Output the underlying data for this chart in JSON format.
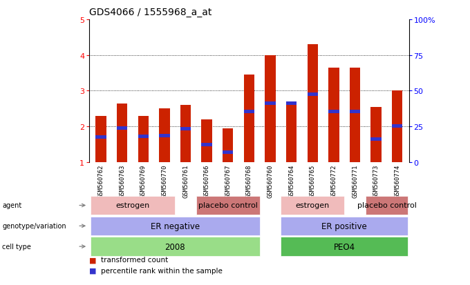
{
  "title": "GDS4066 / 1555968_a_at",
  "samples": [
    "GSM560762",
    "GSM560763",
    "GSM560769",
    "GSM560770",
    "GSM560761",
    "GSM560766",
    "GSM560767",
    "GSM560768",
    "GSM560760",
    "GSM560764",
    "GSM560765",
    "GSM560772",
    "GSM560771",
    "GSM560773",
    "GSM560774"
  ],
  "bar_values": [
    2.3,
    2.65,
    2.3,
    2.5,
    2.6,
    2.2,
    1.95,
    3.45,
    4.0,
    2.7,
    4.3,
    3.65,
    3.65,
    2.55,
    3.0
  ],
  "blue_values": [
    1.7,
    1.95,
    1.72,
    1.75,
    1.93,
    1.5,
    1.28,
    2.42,
    2.65,
    2.65,
    2.9,
    2.42,
    2.42,
    1.65,
    2.02
  ],
  "bar_bottom": 1.0,
  "ylim": [
    1,
    5
  ],
  "y_ticks_left": [
    1,
    2,
    3,
    4,
    5
  ],
  "y_ticks_right": [
    0,
    25,
    50,
    75,
    100
  ],
  "bar_color": "#cc2200",
  "blue_color": "#3333cc",
  "cell_type_labels": [
    "2008",
    "PEO4"
  ],
  "cell_type_color_2008": "#99dd88",
  "cell_type_color_PEO4": "#55bb55",
  "genotype_labels": [
    "ER negative",
    "ER positive"
  ],
  "genotype_color": "#aaaaee",
  "agent_labels": [
    "estrogen",
    "placebo control",
    "estrogen",
    "placebo control"
  ],
  "agent_color_estrogen": "#f0bbbb",
  "agent_color_placebo": "#cc7777",
  "legend_red": "transformed count",
  "legend_blue": "percentile rank within the sample"
}
